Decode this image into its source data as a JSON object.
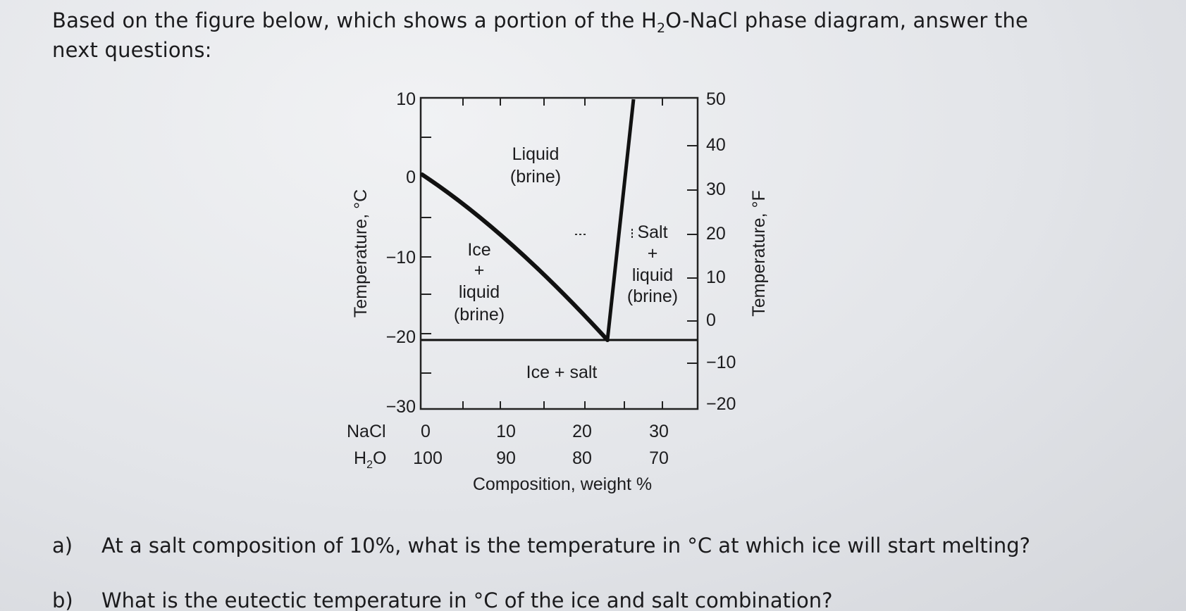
{
  "question": {
    "intro_before": "Based on the figure below, which shows a portion of the H",
    "intro_sub": "2",
    "intro_after": "O-NaCl phase diagram, answer the next questions:",
    "parts": [
      {
        "letter": "a)",
        "text": "At a salt composition of 10%, what is the temperature in °C at which ice will start melting?"
      },
      {
        "letter": "b)",
        "text": "What is the eutectic temperature in °C of the ice and salt combination?"
      }
    ]
  },
  "diagram": {
    "left_axis_label": "Temperature, °C",
    "right_axis_label": "Temperature, °F",
    "left_ticks": [
      "10",
      "0",
      "−10",
      "−20",
      "−30"
    ],
    "right_ticks": [
      "50",
      "40",
      "30",
      "20",
      "10",
      "0",
      "−10",
      "−20"
    ],
    "nacl_row_label": "NaCl",
    "nacl_ticks": [
      "0",
      "10",
      "20",
      "30"
    ],
    "h2o_row_label_main": "H",
    "h2o_row_label_sub": "2",
    "h2o_row_label_end": "O",
    "h2o_ticks": [
      "100",
      "90",
      "80",
      "70"
    ],
    "x_axis_title": "Composition, weight %",
    "regions": {
      "liquid": [
        "Liquid",
        "(brine)"
      ],
      "ice_liquid": [
        "Ice",
        "+",
        "liquid",
        "(brine)"
      ],
      "salt_liquid": [
        "Salt",
        "+",
        "liquid",
        "(brine)"
      ],
      "ice_salt": "Ice + salt"
    }
  }
}
